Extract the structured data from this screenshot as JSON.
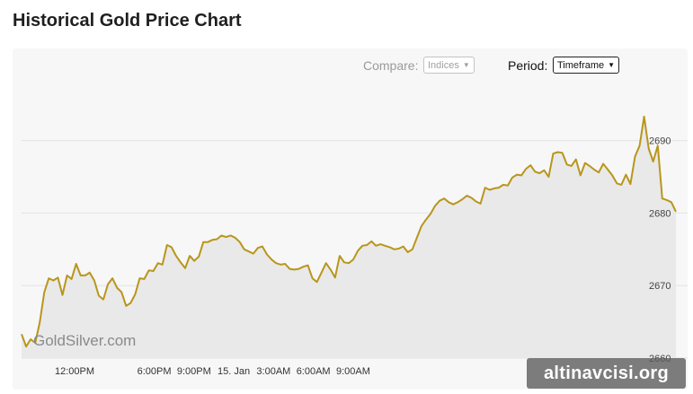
{
  "page": {
    "title": "Historical Gold Price Chart"
  },
  "controls": {
    "compare_label": "Compare:",
    "compare_value": "Indices",
    "period_label": "Period:",
    "period_value": "Timeframe"
  },
  "brand": {
    "chart_watermark": "GoldSilver.com",
    "corner_watermark": "altinavcisi.org"
  },
  "colors": {
    "line": "#b8961c",
    "area": "#e9e9e9",
    "panel": "#f7f7f7",
    "grid": "#e3e3e3"
  },
  "chart_data": {
    "type": "area",
    "title": "Historical Gold Price Chart",
    "xlabel": "",
    "ylabel": "",
    "ylim": [
      2660,
      2697.5
    ],
    "xlim": [
      0,
      148
    ],
    "x_unit": "hours offset (tick labels show clock time)",
    "yticks": [
      2660,
      2670,
      2680,
      2690
    ],
    "xticks": [
      {
        "x": 12,
        "label": "12:00PM"
      },
      {
        "x": 30,
        "label": "6:00PM"
      },
      {
        "x": 39,
        "label": "9:00PM"
      },
      {
        "x": 48,
        "label": "15. Jan"
      },
      {
        "x": 57,
        "label": "3:00AM"
      },
      {
        "x": 66,
        "label": "6:00AM"
      },
      {
        "x": 75,
        "label": "9:00AM"
      }
    ],
    "grid": true,
    "legend": "none",
    "series": [
      {
        "values": [
          2663.3,
          2661.6,
          2662.6,
          2662.1,
          2664.9,
          2669.1,
          2671.0,
          2670.7,
          2671.1,
          2668.7,
          2671.4,
          2670.9,
          2673.0,
          2671.4,
          2671.4,
          2671.8,
          2670.7,
          2668.6,
          2668.1,
          2670.2,
          2671.0,
          2669.7,
          2669.1,
          2667.2,
          2667.6,
          2668.8,
          2671.0,
          2670.9,
          2672.1,
          2672.0,
          2673.1,
          2672.9,
          2675.6,
          2675.3,
          2674.1,
          2673.2,
          2672.4,
          2674.1,
          2673.4,
          2674.0,
          2676.0,
          2676.0,
          2676.3,
          2676.4,
          2676.9,
          2676.7,
          2676.9,
          2676.6,
          2676.0,
          2675.0,
          2674.7,
          2674.4,
          2675.2,
          2675.4,
          2674.3,
          2673.6,
          2673.1,
          2672.9,
          2673.0,
          2672.3,
          2672.2,
          2672.3,
          2672.6,
          2672.8,
          2671.0,
          2670.5,
          2671.8,
          2673.1,
          2672.2,
          2671.1,
          2674.1,
          2673.2,
          2673.1,
          2673.6,
          2674.8,
          2675.5,
          2675.6,
          2676.1,
          2675.5,
          2675.7,
          2675.5,
          2675.3,
          2675.0,
          2675.1,
          2675.4,
          2674.6,
          2675.0,
          2676.6,
          2678.2,
          2679.1,
          2679.9,
          2681.0,
          2681.7,
          2682.0,
          2681.5,
          2681.2,
          2681.5,
          2681.9,
          2682.4,
          2682.1,
          2681.6,
          2681.3,
          2683.5,
          2683.2,
          2683.4,
          2683.5,
          2683.9,
          2683.8,
          2684.9,
          2685.3,
          2685.2,
          2686.1,
          2686.6,
          2685.7,
          2685.5,
          2685.9,
          2685.0,
          2688.2,
          2688.4,
          2688.3,
          2686.7,
          2686.5,
          2687.4,
          2685.2,
          2686.9,
          2686.5,
          2686.0,
          2685.6,
          2686.8,
          2686.0,
          2685.2,
          2684.1,
          2683.9,
          2685.3,
          2684.0,
          2687.8,
          2689.3,
          2693.3,
          2688.9,
          2687.1,
          2689.3,
          2682.0,
          2681.8,
          2681.5,
          2680.2
        ]
      }
    ]
  }
}
